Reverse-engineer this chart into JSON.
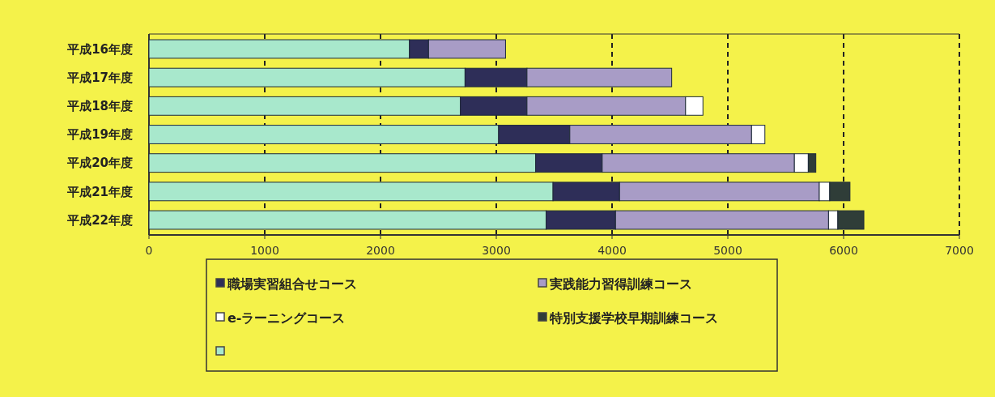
{
  "chart_data": {
    "type": "bar",
    "orientation": "horizontal",
    "stacked": true,
    "categories": [
      "平成16年度",
      "平成17年度",
      "平成18年度",
      "平成19年度",
      "平成20年度",
      "平成21年度",
      "平成22年度"
    ],
    "series": [
      {
        "color": "#a8e8cc",
        "values": [
          2250,
          2730,
          2690,
          3020,
          3340,
          3490,
          3430
        ]
      },
      {
        "name": "職場実習組合せコース",
        "color": "#2e2e58",
        "values": [
          165,
          535,
          575,
          615,
          575,
          575,
          600
        ]
      },
      {
        "name": "実践能力習得訓練コース",
        "color": "#a89cc6",
        "values": [
          665,
          1250,
          1370,
          1570,
          1660,
          1725,
          1840
        ]
      },
      {
        "name": "e-ラーニングコース",
        "color": "#ffffff",
        "values": [
          0,
          0,
          150,
          115,
          120,
          90,
          80
        ]
      },
      {
        "name": "特別支援学校早期訓練コース",
        "color": "#2f3d38",
        "values": [
          0,
          0,
          0,
          0,
          65,
          175,
          225
        ]
      }
    ],
    "xlim": [
      0,
      7000
    ],
    "xticks": [
      0,
      1000,
      2000,
      3000,
      4000,
      5000,
      6000,
      7000
    ],
    "grid": "x",
    "legend": "bottom"
  }
}
